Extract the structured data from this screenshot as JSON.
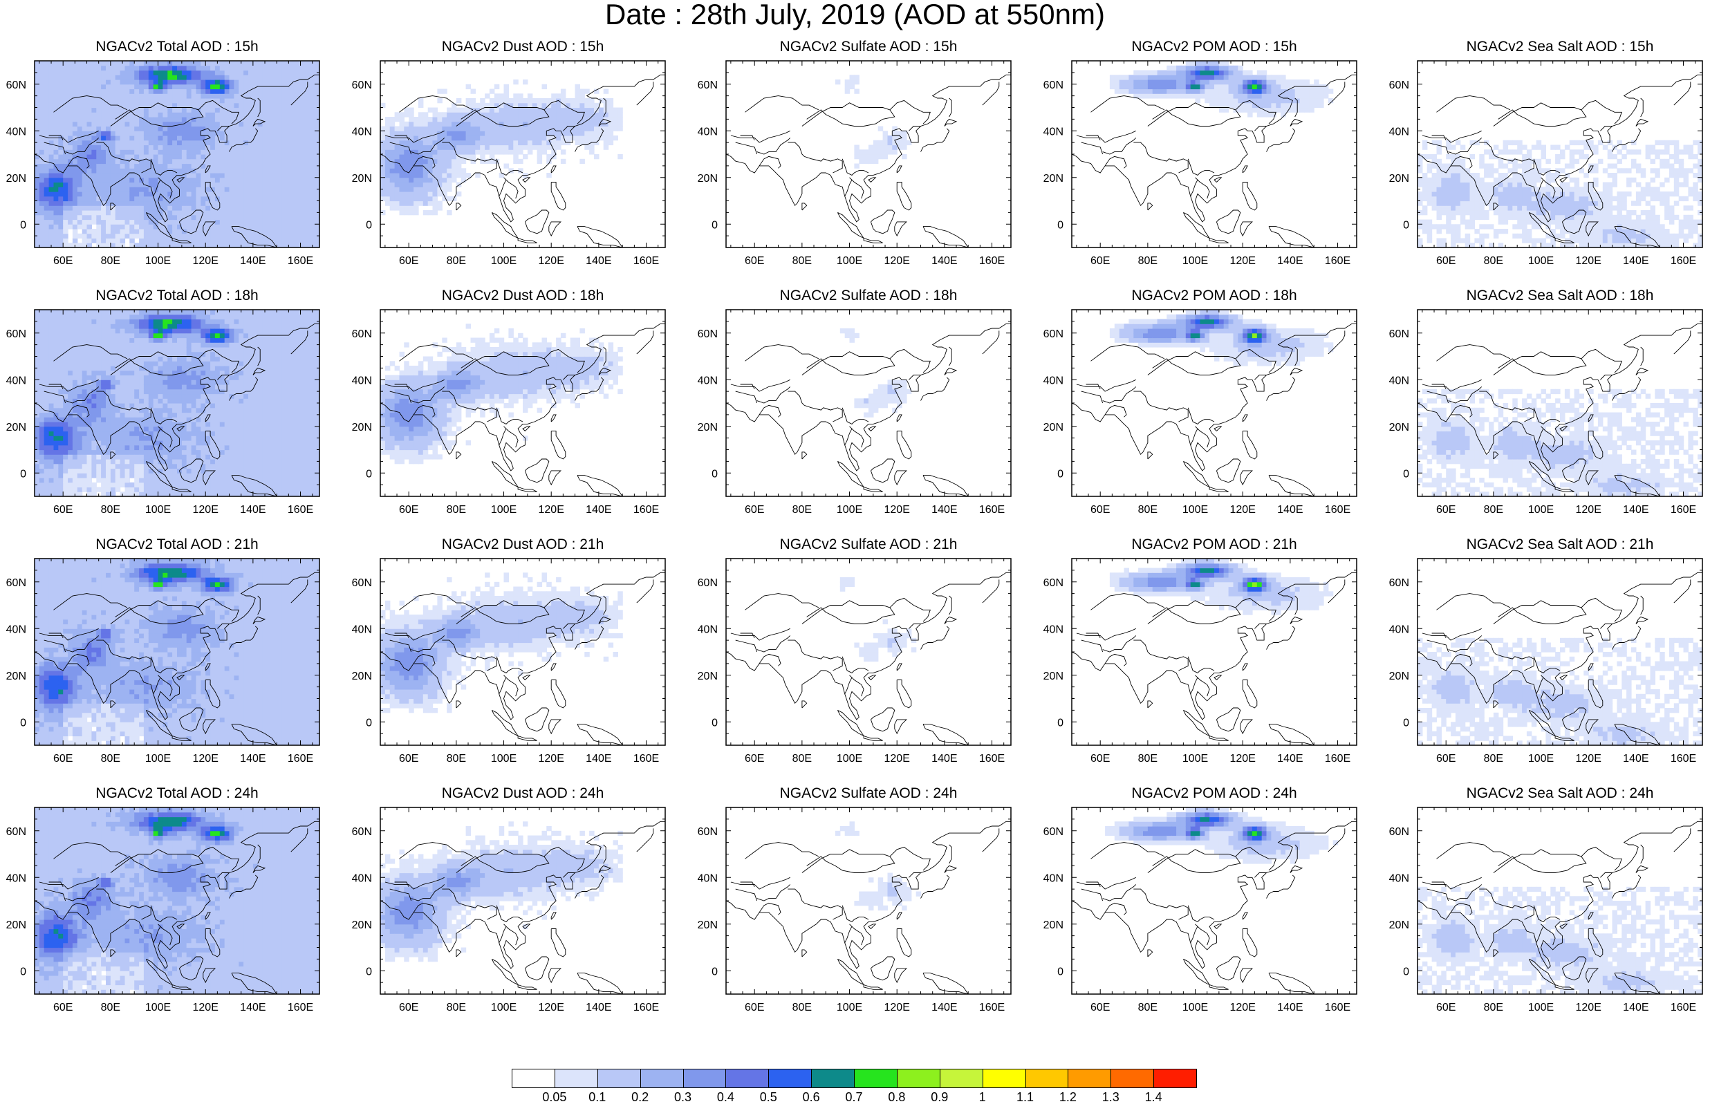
{
  "title": "Date : 28th July, 2019 (AOD at 550nm)",
  "panels": [
    {
      "title": "NGACv2 Total AOD : 15h",
      "species": "total",
      "hour": "15h"
    },
    {
      "title": "NGACv2 Dust AOD : 15h",
      "species": "dust",
      "hour": "15h"
    },
    {
      "title": "NGACv2 Sulfate AOD : 15h",
      "species": "sulfate",
      "hour": "15h"
    },
    {
      "title": "NGACv2 POM AOD : 15h",
      "species": "pom",
      "hour": "15h"
    },
    {
      "title": "NGACv2 Sea Salt AOD : 15h",
      "species": "seasalt",
      "hour": "15h"
    },
    {
      "title": "NGACv2 Total AOD : 18h",
      "species": "total",
      "hour": "18h"
    },
    {
      "title": "NGACv2 Dust AOD : 18h",
      "species": "dust",
      "hour": "18h"
    },
    {
      "title": "NGACv2 Sulfate AOD : 18h",
      "species": "sulfate",
      "hour": "18h"
    },
    {
      "title": "NGACv2 POM AOD : 18h",
      "species": "pom",
      "hour": "18h"
    },
    {
      "title": "NGACv2 Sea Salt AOD : 18h",
      "species": "seasalt",
      "hour": "18h"
    },
    {
      "title": "NGACv2 Total AOD : 21h",
      "species": "total",
      "hour": "21h"
    },
    {
      "title": "NGACv2 Dust AOD : 21h",
      "species": "dust",
      "hour": "21h"
    },
    {
      "title": "NGACv2 Sulfate AOD : 21h",
      "species": "sulfate",
      "hour": "21h"
    },
    {
      "title": "NGACv2 POM AOD : 21h",
      "species": "pom",
      "hour": "21h"
    },
    {
      "title": "NGACv2 Sea Salt AOD : 21h",
      "species": "seasalt",
      "hour": "21h"
    },
    {
      "title": "NGACv2 Total AOD : 24h",
      "species": "total",
      "hour": "24h"
    },
    {
      "title": "NGACv2 Dust AOD : 24h",
      "species": "dust",
      "hour": "24h"
    },
    {
      "title": "NGACv2 Sulfate AOD : 24h",
      "species": "sulfate",
      "hour": "24h"
    },
    {
      "title": "NGACv2 POM AOD : 24h",
      "species": "pom",
      "hour": "24h"
    },
    {
      "title": "NGACv2 Sea Salt  AOD : 24h",
      "species": "seasalt",
      "hour": "24h"
    }
  ],
  "map_extent": {
    "lon_min": 48,
    "lon_max": 168,
    "lat_min": -10,
    "lat_max": 70
  },
  "lon_ticks": [
    "60E",
    "80E",
    "100E",
    "120E",
    "140E",
    "160E"
  ],
  "lon_tick_values": [
    60,
    80,
    100,
    120,
    140,
    160
  ],
  "lat_ticks": [
    "0",
    "20N",
    "40N",
    "60N"
  ],
  "lat_tick_values": [
    0,
    20,
    40,
    60
  ],
  "colorbar": {
    "labels": [
      "0.05",
      "0.1",
      "0.2",
      "0.3",
      "0.4",
      "0.5",
      "0.6",
      "0.7",
      "0.8",
      "0.9",
      "1",
      "1.1",
      "1.2",
      "1.3",
      "1.4"
    ],
    "colors": [
      "#ffffff",
      "#dce4fb",
      "#b9c8f7",
      "#9db3f2",
      "#8098ec",
      "#6475e6",
      "#2c62f0",
      "#0d8a8a",
      "#26e41e",
      "#8df01e",
      "#c6f53a",
      "#ffff00",
      "#ffc800",
      "#ff9b00",
      "#ff6a00",
      "#ff1e00"
    ]
  }
}
